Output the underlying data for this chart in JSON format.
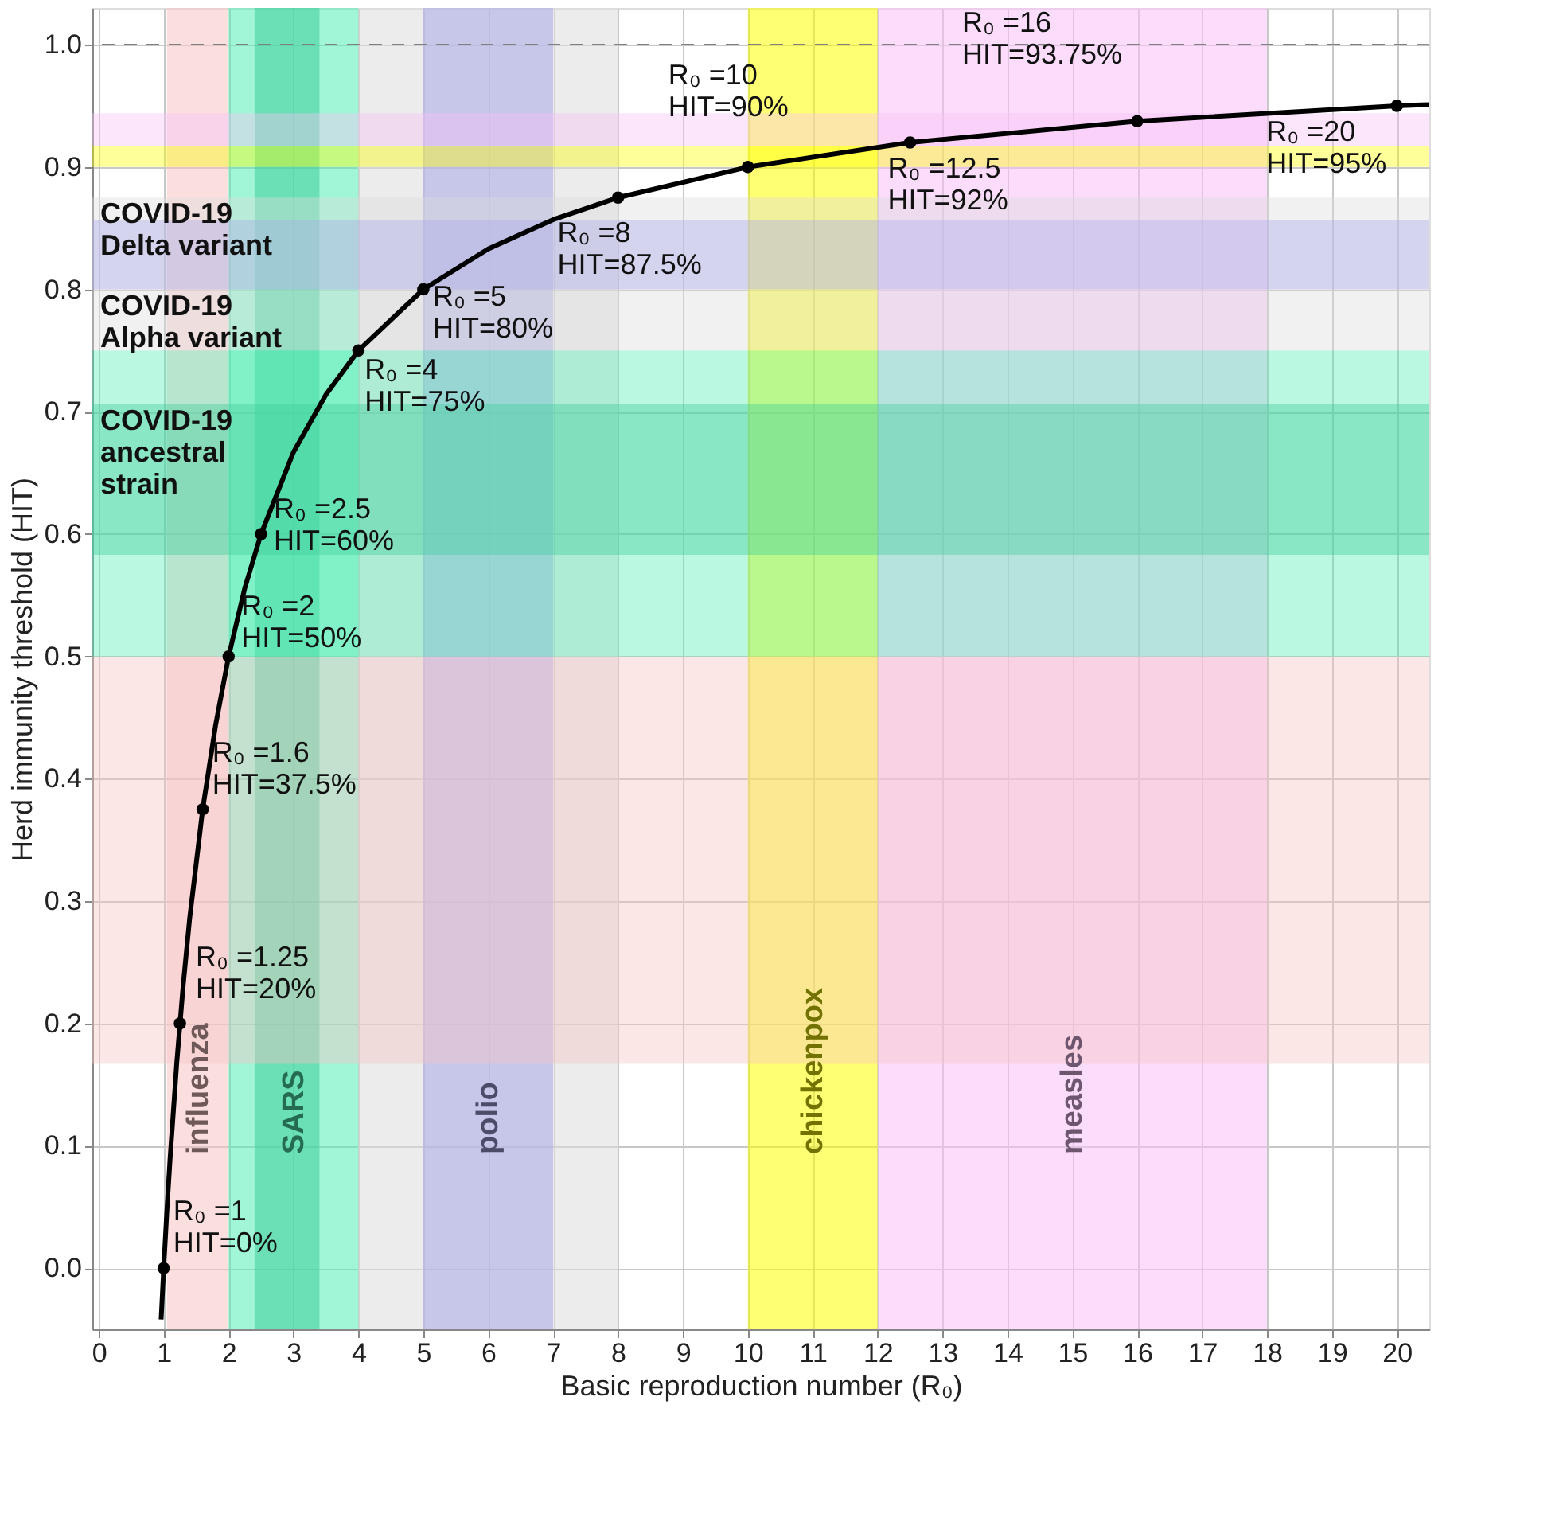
{
  "chart_data": {
    "type": "line",
    "xlabel": "Basic reproduction number (R₀)",
    "ylabel": "Herd immunity threshold (HIT)",
    "xlim": [
      -0.1,
      20.5
    ],
    "ylim": [
      -0.05,
      1.03
    ],
    "xticks": [
      0,
      1,
      2,
      3,
      4,
      5,
      6,
      7,
      8,
      9,
      10,
      11,
      12,
      13,
      14,
      15,
      16,
      17,
      18,
      19,
      20
    ],
    "yticks": [
      {
        "value": 0,
        "label": "0.0"
      },
      0.1,
      0.2,
      0.3,
      0.4,
      0.5,
      0.6,
      0.7,
      0.8,
      0.9,
      {
        "value": 1,
        "label": "1.0"
      }
    ],
    "grid": true,
    "series": [
      {
        "color": "#000000",
        "marker": "none",
        "x": [
          0.96,
          1,
          1.05,
          1.1,
          1.2,
          1.3,
          1.4,
          1.6,
          1.8,
          2,
          2.25,
          2.5,
          3,
          3.5,
          4,
          5,
          6,
          7,
          8,
          10,
          12.5,
          16,
          20,
          20.5
        ],
        "values": [
          -0.042,
          0,
          0.048,
          0.091,
          0.167,
          0.231,
          0.286,
          0.375,
          0.444,
          0.5,
          0.556,
          0.6,
          0.667,
          0.714,
          0.75,
          0.8,
          0.833,
          0.857,
          0.875,
          0.9,
          0.92,
          0.9375,
          0.95,
          0.951
        ]
      },
      {
        "type": "scatter",
        "color": "#000000",
        "marker": "circle",
        "x": [
          1,
          1.25,
          1.6,
          2,
          2.5,
          4,
          5,
          8,
          10,
          12.5,
          16,
          20
        ],
        "values": [
          0,
          0.2,
          0.375,
          0.5,
          0.6,
          0.75,
          0.8,
          0.875,
          0.9,
          0.92,
          0.9375,
          0.95
        ]
      }
    ],
    "bands": [
      {
        "axis": "x",
        "from": 1.05,
        "to": 2,
        "label": "influenza",
        "color": "#f7c4c4"
      },
      {
        "axis": "x",
        "from": 2,
        "to": 4,
        "label": "SARS",
        "color": "#52eeb4"
      },
      {
        "axis": "x",
        "from": 2.4,
        "to": 3.4,
        "label": null,
        "color": "#40cc9a"
      },
      {
        "axis": "x",
        "from": 4,
        "to": 5,
        "label": null,
        "color": "#dcdcdc"
      },
      {
        "axis": "x",
        "from": 5,
        "to": 8,
        "label": null,
        "color": "#dcdcdc"
      },
      {
        "axis": "x",
        "from": 5,
        "to": 7,
        "label": "polio",
        "color": "#aaaaea"
      },
      {
        "axis": "x",
        "from": 10,
        "to": 12,
        "label": "chickenpox",
        "color": "#ffff00"
      },
      {
        "axis": "x",
        "from": 12,
        "to": 18,
        "label": "measles",
        "color": "#f7c0f7"
      },
      {
        "axis": "y",
        "from": 0.167,
        "to": 0.5,
        "label": null,
        "color": "#f7c4c4"
      },
      {
        "axis": "y",
        "from": 0.5,
        "to": 0.75,
        "label": null,
        "color": "#52eeb4"
      },
      {
        "axis": "y",
        "from": 0.583,
        "to": 0.706,
        "label": "COVID-19\nancestral\nstrain",
        "color": "#40cc9a"
      },
      {
        "axis": "y",
        "from": 0.75,
        "to": 0.8,
        "label": "COVID-19\nAlpha variant",
        "color": "#dcdcdc"
      },
      {
        "axis": "y",
        "from": 0.8,
        "to": 0.875,
        "label": "COVID-19\nDelta variant",
        "color": "#dcdcdc"
      },
      {
        "axis": "y",
        "from": 0.8,
        "to": 0.857,
        "label": null,
        "color": "#aaaaea"
      },
      {
        "axis": "y",
        "from": 0.9,
        "to": 0.917,
        "label": null,
        "color": "#ffff00"
      },
      {
        "axis": "y",
        "from": 0.917,
        "to": 0.944,
        "label": null,
        "color": "#f7c0f7"
      }
    ],
    "ref_lines": [
      {
        "axis": "y",
        "value": 1,
        "label": null,
        "color": "#808080",
        "line_style": "dashed"
      }
    ],
    "annotations": [
      {
        "text": "R₀ =1\nHIT=0%",
        "x": 1,
        "y": 0
      },
      {
        "text": "R₀ =1.25\nHIT=20%",
        "x": 1.25,
        "y": 0.2
      },
      {
        "text": "R₀ =1.6\nHIT=37.5%",
        "x": 1.6,
        "y": 0.375
      },
      {
        "text": "R₀ =2\nHIT=50%",
        "x": 2,
        "y": 0.5
      },
      {
        "text": "R₀ =2.5\nHIT=60%",
        "x": 2.5,
        "y": 0.6
      },
      {
        "text": "R₀ =4\nHIT=75%",
        "x": 4,
        "y": 0.75
      },
      {
        "text": "R₀ =5\nHIT=80%",
        "x": 5,
        "y": 0.8
      },
      {
        "text": "R₀ =8\nHIT=87.5%",
        "x": 8,
        "y": 0.875
      },
      {
        "text": "R₀ =10\nHIT=90%",
        "x": 10,
        "y": 0.9
      },
      {
        "text": "R₀ =12.5\nHIT=92%",
        "x": 12.5,
        "y": 0.92
      },
      {
        "text": "R₀ =16\nHIT=93.75%",
        "x": 16,
        "y": 0.9375
      },
      {
        "text": "R₀ =20\nHIT=95%",
        "x": 20,
        "y": 0.95
      }
    ]
  }
}
